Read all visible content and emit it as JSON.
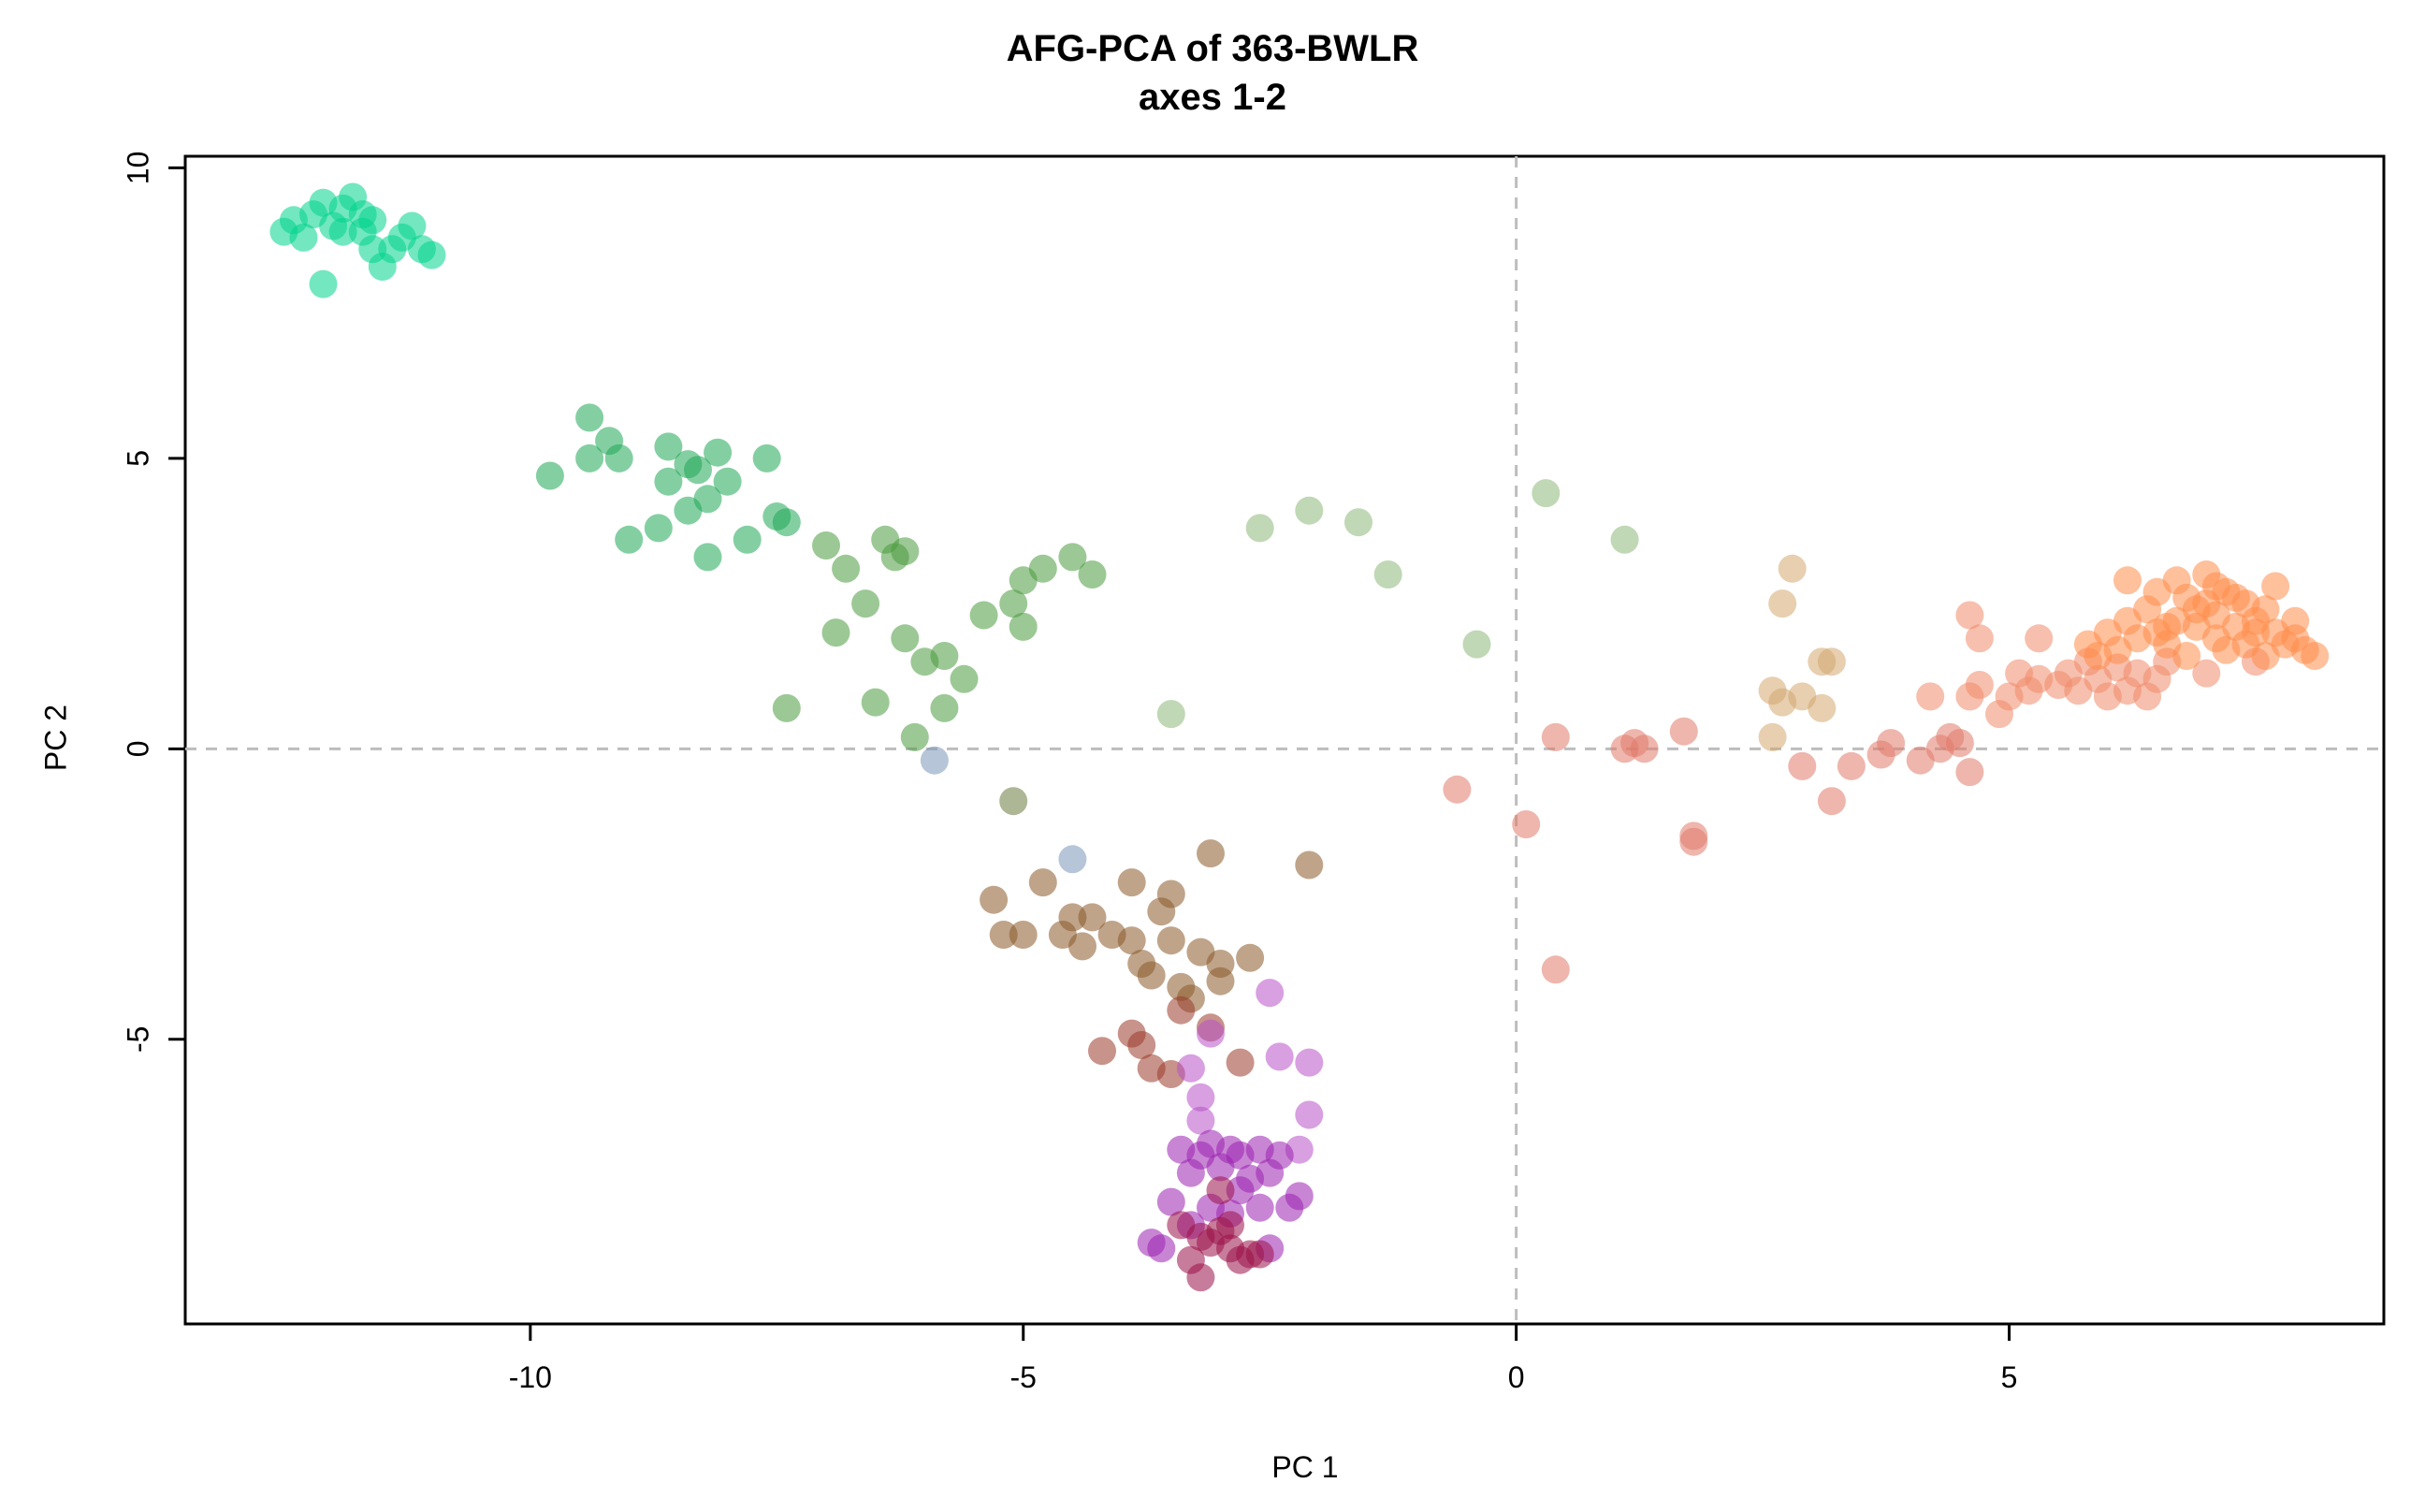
{
  "chart_data": {
    "type": "scatter",
    "title": "AFG-PCA of 363-BWLR",
    "subtitle": "axes 1-2",
    "xlabel": "PC 1",
    "ylabel": "PC 2",
    "xlim": [
      -13.5,
      8.8
    ],
    "ylim": [
      -9.9,
      10.2
    ],
    "xticks": [
      -10,
      -5,
      0,
      5
    ],
    "yticks": [
      -5,
      0,
      5,
      10
    ],
    "reference_lines": {
      "x": 0,
      "y": 0,
      "style": "dashed"
    },
    "grid": false,
    "series": [
      {
        "name": "cyan-green cluster",
        "color": "#00d48c",
        "points": [
          [
            -12.5,
            8.9
          ],
          [
            -12.3,
            8.8
          ],
          [
            -12.2,
            9.2
          ],
          [
            -12.1,
            9.4
          ],
          [
            -12.0,
            9.0
          ],
          [
            -11.9,
            9.3
          ],
          [
            -11.8,
            9.5
          ],
          [
            -11.7,
            8.9
          ],
          [
            -11.7,
            9.2
          ],
          [
            -11.6,
            8.6
          ],
          [
            -11.5,
            8.3
          ],
          [
            -11.4,
            8.6
          ],
          [
            -11.3,
            8.8
          ],
          [
            -11.2,
            9.0
          ],
          [
            -11.1,
            8.6
          ],
          [
            -11.0,
            8.5
          ],
          [
            -12.1,
            8.0
          ],
          [
            -11.9,
            8.9
          ],
          [
            -12.4,
            9.1
          ],
          [
            -11.6,
            9.1
          ]
        ]
      },
      {
        "name": "green",
        "color": "#1fa855",
        "points": [
          [
            -9.8,
            4.7
          ],
          [
            -9.4,
            5.7
          ],
          [
            -9.4,
            5.0
          ],
          [
            -9.2,
            5.3
          ],
          [
            -9.1,
            5.0
          ],
          [
            -9.0,
            3.6
          ],
          [
            -8.7,
            3.8
          ],
          [
            -8.6,
            4.6
          ],
          [
            -8.6,
            5.2
          ],
          [
            -8.4,
            4.1
          ],
          [
            -8.3,
            4.8
          ],
          [
            -8.2,
            4.3
          ],
          [
            -8.2,
            3.3
          ],
          [
            -8.1,
            5.1
          ],
          [
            -8.0,
            4.6
          ],
          [
            -7.8,
            3.6
          ],
          [
            -7.6,
            5.0
          ],
          [
            -7.5,
            4.0
          ],
          [
            -7.4,
            3.9
          ],
          [
            -8.4,
            4.9
          ]
        ]
      },
      {
        "name": "olive green",
        "color": "#4a9a3e",
        "points": [
          [
            -7.4,
            0.7
          ],
          [
            -7.0,
            3.5
          ],
          [
            -6.8,
            3.1
          ],
          [
            -6.9,
            2.0
          ],
          [
            -6.6,
            2.5
          ],
          [
            -6.5,
            0.8
          ],
          [
            -6.4,
            3.6
          ],
          [
            -6.3,
            3.3
          ],
          [
            -6.2,
            3.4
          ],
          [
            -6.2,
            1.9
          ],
          [
            -6.1,
            0.2
          ],
          [
            -6.0,
            1.5
          ],
          [
            -5.8,
            1.6
          ],
          [
            -5.8,
            0.7
          ],
          [
            -5.6,
            1.2
          ],
          [
            -5.4,
            2.3
          ],
          [
            -5.1,
            2.5
          ],
          [
            -5.0,
            2.1
          ],
          [
            -5.0,
            2.9
          ],
          [
            -4.8,
            3.1
          ],
          [
            -4.5,
            3.3
          ],
          [
            -4.3,
            3.0
          ]
        ]
      },
      {
        "name": "sage",
        "color": "#8cb878",
        "points": [
          [
            -3.5,
            0.6
          ],
          [
            -2.6,
            3.8
          ],
          [
            -2.1,
            4.1
          ],
          [
            -1.6,
            3.9
          ],
          [
            -1.3,
            3.0
          ],
          [
            -0.4,
            1.8
          ],
          [
            0.3,
            4.4
          ],
          [
            1.1,
            3.6
          ]
        ]
      },
      {
        "name": "slate",
        "color": "#7a96b8",
        "points": [
          [
            -5.9,
            -0.2
          ],
          [
            -4.5,
            -1.9
          ]
        ]
      },
      {
        "name": "dark olive",
        "color": "#6a7a3e",
        "points": [
          [
            -5.1,
            -0.9
          ]
        ]
      },
      {
        "name": "brown",
        "color": "#8a5a2a",
        "points": [
          [
            -5.3,
            -2.6
          ],
          [
            -5.2,
            -3.2
          ],
          [
            -5.0,
            -3.2
          ],
          [
            -4.8,
            -2.3
          ],
          [
            -4.6,
            -3.2
          ],
          [
            -4.5,
            -2.9
          ],
          [
            -4.4,
            -3.4
          ],
          [
            -4.3,
            -2.9
          ],
          [
            -4.1,
            -3.2
          ],
          [
            -3.9,
            -2.3
          ],
          [
            -3.9,
            -3.3
          ],
          [
            -3.8,
            -3.7
          ],
          [
            -3.7,
            -3.9
          ],
          [
            -3.6,
            -2.8
          ],
          [
            -3.5,
            -2.5
          ],
          [
            -3.5,
            -3.3
          ],
          [
            -3.4,
            -4.1
          ],
          [
            -3.3,
            -4.3
          ],
          [
            -3.2,
            -3.5
          ],
          [
            -3.0,
            -3.7
          ],
          [
            -3.0,
            -4.0
          ],
          [
            -3.1,
            -1.8
          ],
          [
            -2.7,
            -3.6
          ],
          [
            -2.1,
            -2.0
          ]
        ]
      },
      {
        "name": "rust brown",
        "color": "#9a3a2a",
        "points": [
          [
            -4.2,
            -5.2
          ],
          [
            -3.9,
            -4.9
          ],
          [
            -3.8,
            -5.1
          ],
          [
            -3.7,
            -5.5
          ],
          [
            -3.5,
            -5.6
          ],
          [
            -3.4,
            -4.5
          ],
          [
            -3.1,
            -4.8
          ],
          [
            -2.8,
            -5.4
          ]
        ]
      },
      {
        "name": "orchid",
        "color": "#b850c8",
        "points": [
          [
            -3.3,
            -5.5
          ],
          [
            -3.2,
            -6.0
          ],
          [
            -3.2,
            -6.4
          ],
          [
            -2.5,
            -4.2
          ],
          [
            -2.4,
            -5.3
          ],
          [
            -2.1,
            -5.4
          ],
          [
            -2.1,
            -6.3
          ],
          [
            -2.2,
            -6.9
          ],
          [
            -3.1,
            -4.9
          ]
        ]
      },
      {
        "name": "purple",
        "color": "#9a20b0",
        "points": [
          [
            -3.4,
            -6.9
          ],
          [
            -3.3,
            -7.3
          ],
          [
            -3.2,
            -7.0
          ],
          [
            -3.1,
            -6.8
          ],
          [
            -3.0,
            -7.2
          ],
          [
            -2.9,
            -6.9
          ],
          [
            -2.8,
            -7.0
          ],
          [
            -2.7,
            -7.4
          ],
          [
            -2.6,
            -6.9
          ],
          [
            -2.5,
            -7.3
          ],
          [
            -2.4,
            -7.0
          ],
          [
            -3.5,
            -7.8
          ],
          [
            -3.1,
            -7.9
          ],
          [
            -2.9,
            -8.0
          ],
          [
            -2.6,
            -7.9
          ],
          [
            -2.3,
            -7.9
          ],
          [
            -2.2,
            -7.7
          ],
          [
            -3.7,
            -8.5
          ],
          [
            -3.6,
            -8.6
          ],
          [
            -2.5,
            -8.6
          ],
          [
            -3.3,
            -8.2
          ],
          [
            -2.8,
            -7.6
          ]
        ]
      },
      {
        "name": "maroon",
        "color": "#9a1048",
        "points": [
          [
            -3.4,
            -8.2
          ],
          [
            -3.3,
            -8.8
          ],
          [
            -3.2,
            -9.1
          ],
          [
            -3.1,
            -8.5
          ],
          [
            -3.0,
            -8.3
          ],
          [
            -2.9,
            -8.6
          ],
          [
            -2.8,
            -8.8
          ],
          [
            -2.7,
            -8.7
          ],
          [
            -3.2,
            -8.4
          ],
          [
            -2.9,
            -8.2
          ],
          [
            -3.0,
            -7.6
          ],
          [
            -2.6,
            -8.7
          ]
        ]
      },
      {
        "name": "tan",
        "color": "#d4a870",
        "points": [
          [
            2.8,
            3.1
          ],
          [
            2.7,
            2.5
          ],
          [
            2.6,
            1.0
          ],
          [
            2.7,
            0.8
          ],
          [
            2.9,
            0.9
          ],
          [
            3.1,
            1.5
          ],
          [
            3.2,
            1.5
          ],
          [
            3.1,
            0.7
          ],
          [
            2.6,
            0.2
          ]
        ]
      },
      {
        "name": "light coral",
        "color": "#e07a6a",
        "points": [
          [
            -0.6,
            -0.7
          ],
          [
            0.1,
            -1.3
          ],
          [
            0.4,
            0.2
          ],
          [
            0.4,
            -3.8
          ],
          [
            1.1,
            0.0
          ],
          [
            1.2,
            0.1
          ],
          [
            1.3,
            0.0
          ],
          [
            1.7,
            0.3
          ],
          [
            1.8,
            -1.6
          ],
          [
            1.8,
            -1.5
          ],
          [
            2.9,
            -0.3
          ],
          [
            3.2,
            -0.9
          ],
          [
            3.4,
            -0.3
          ],
          [
            3.7,
            -0.1
          ],
          [
            3.8,
            0.1
          ],
          [
            4.1,
            -0.2
          ],
          [
            4.3,
            0.0
          ],
          [
            4.4,
            0.2
          ],
          [
            4.6,
            -0.4
          ],
          [
            4.5,
            0.1
          ]
        ]
      },
      {
        "name": "salmon",
        "color": "#f08a6a",
        "points": [
          [
            4.2,
            0.9
          ],
          [
            4.6,
            0.9
          ],
          [
            4.7,
            1.1
          ],
          [
            4.7,
            1.9
          ],
          [
            4.6,
            2.3
          ],
          [
            4.9,
            0.6
          ],
          [
            5.0,
            0.9
          ],
          [
            5.1,
            1.3
          ],
          [
            5.2,
            1.0
          ],
          [
            5.3,
            1.2
          ],
          [
            5.3,
            1.9
          ],
          [
            5.5,
            1.1
          ],
          [
            5.6,
            1.3
          ],
          [
            5.7,
            1.0
          ],
          [
            5.8,
            1.5
          ],
          [
            5.9,
            1.2
          ],
          [
            6.0,
            0.9
          ],
          [
            6.1,
            1.4
          ],
          [
            6.2,
            1.0
          ],
          [
            6.3,
            1.3
          ],
          [
            6.4,
            0.9
          ],
          [
            6.5,
            1.2
          ],
          [
            6.6,
            1.5
          ],
          [
            7.0,
            1.3
          ],
          [
            7.5,
            1.5
          ]
        ]
      },
      {
        "name": "peach orange",
        "color": "#ff8c4a",
        "points": [
          [
            5.8,
            1.8
          ],
          [
            5.9,
            1.6
          ],
          [
            6.0,
            2.0
          ],
          [
            6.1,
            1.7
          ],
          [
            6.2,
            2.2
          ],
          [
            6.2,
            2.9
          ],
          [
            6.3,
            1.9
          ],
          [
            6.4,
            2.4
          ],
          [
            6.5,
            2.0
          ],
          [
            6.5,
            2.7
          ],
          [
            6.6,
            1.8
          ],
          [
            6.7,
            2.2
          ],
          [
            6.7,
            2.9
          ],
          [
            6.8,
            2.6
          ],
          [
            6.8,
            1.6
          ],
          [
            6.9,
            2.1
          ],
          [
            7.0,
            2.5
          ],
          [
            7.0,
            3.0
          ],
          [
            7.1,
            1.9
          ],
          [
            7.1,
            2.3
          ],
          [
            7.2,
            2.7
          ],
          [
            7.2,
            1.7
          ],
          [
            7.3,
            2.1
          ],
          [
            7.4,
            2.5
          ],
          [
            7.4,
            1.8
          ],
          [
            7.5,
            2.0
          ],
          [
            7.6,
            2.4
          ],
          [
            7.6,
            1.6
          ],
          [
            7.7,
            2.0
          ],
          [
            7.7,
            2.8
          ],
          [
            7.8,
            1.8
          ],
          [
            7.9,
            1.9
          ],
          [
            8.0,
            1.7
          ],
          [
            8.1,
            1.6
          ],
          [
            7.9,
            2.2
          ],
          [
            6.9,
            2.4
          ],
          [
            7.3,
            2.6
          ],
          [
            6.6,
            2.1
          ],
          [
            7.5,
            2.2
          ],
          [
            7.1,
            2.8
          ]
        ]
      }
    ]
  }
}
